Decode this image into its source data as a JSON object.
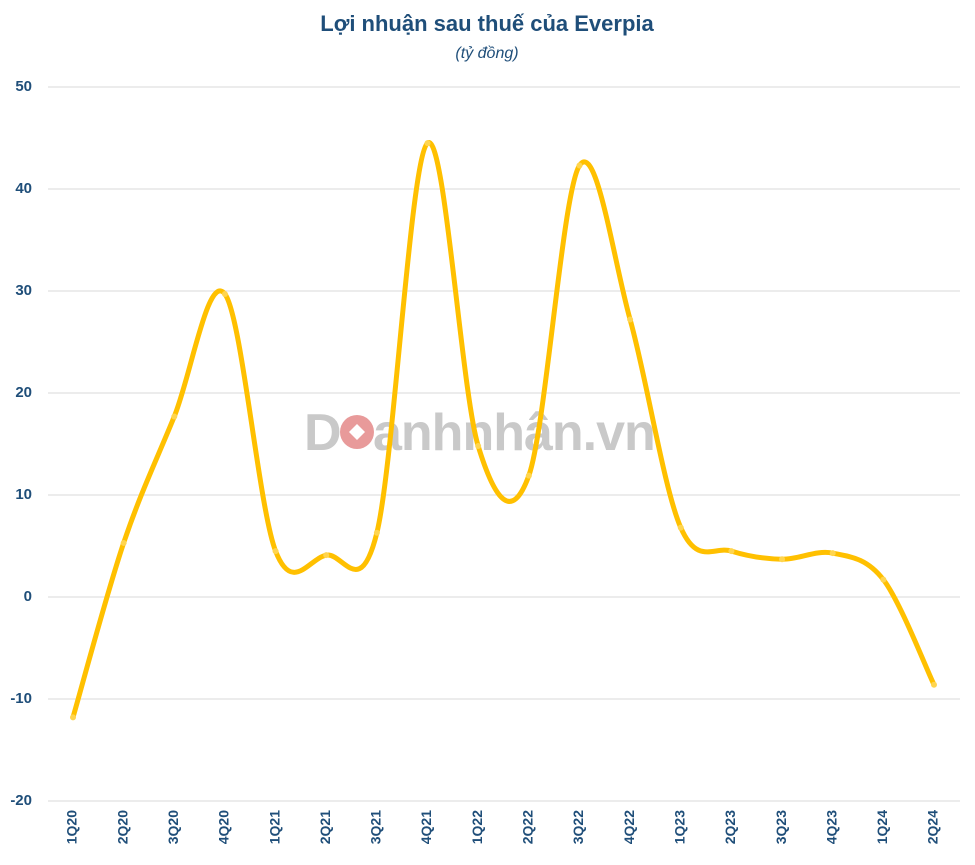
{
  "chart_data": {
    "type": "line",
    "title": "Lợi nhuận sau thuế của Everpia",
    "subtitle": "(tỷ đồng)",
    "categories": [
      "1Q20",
      "2Q20",
      "3Q20",
      "4Q20",
      "1Q21",
      "2Q21",
      "3Q21",
      "4Q21",
      "1Q22",
      "2Q22",
      "3Q22",
      "4Q22",
      "1Q23",
      "2Q23",
      "3Q23",
      "4Q23",
      "1Q24",
      "2Q24"
    ],
    "series": [
      {
        "values": [
          -11.8,
          5.3,
          17.7,
          29.7,
          4.5,
          4.1,
          6.3,
          44.5,
          14.8,
          11.9,
          42.3,
          27.2,
          6.8,
          4.5,
          3.7,
          4.3,
          1.7,
          -8.6
        ]
      }
    ],
    "ylim": [
      -20,
      50
    ],
    "yticks": [
      50,
      40,
      30,
      20,
      10,
      0,
      -10,
      -20
    ],
    "grid": true,
    "legend": "none",
    "smooth": true
  },
  "colors": {
    "line": "#FFC000",
    "text": "#1F4E79",
    "grid": "#D9D9D9",
    "watermark_dot": "#E89A9A"
  },
  "watermark": "Doanhnhân.vn"
}
